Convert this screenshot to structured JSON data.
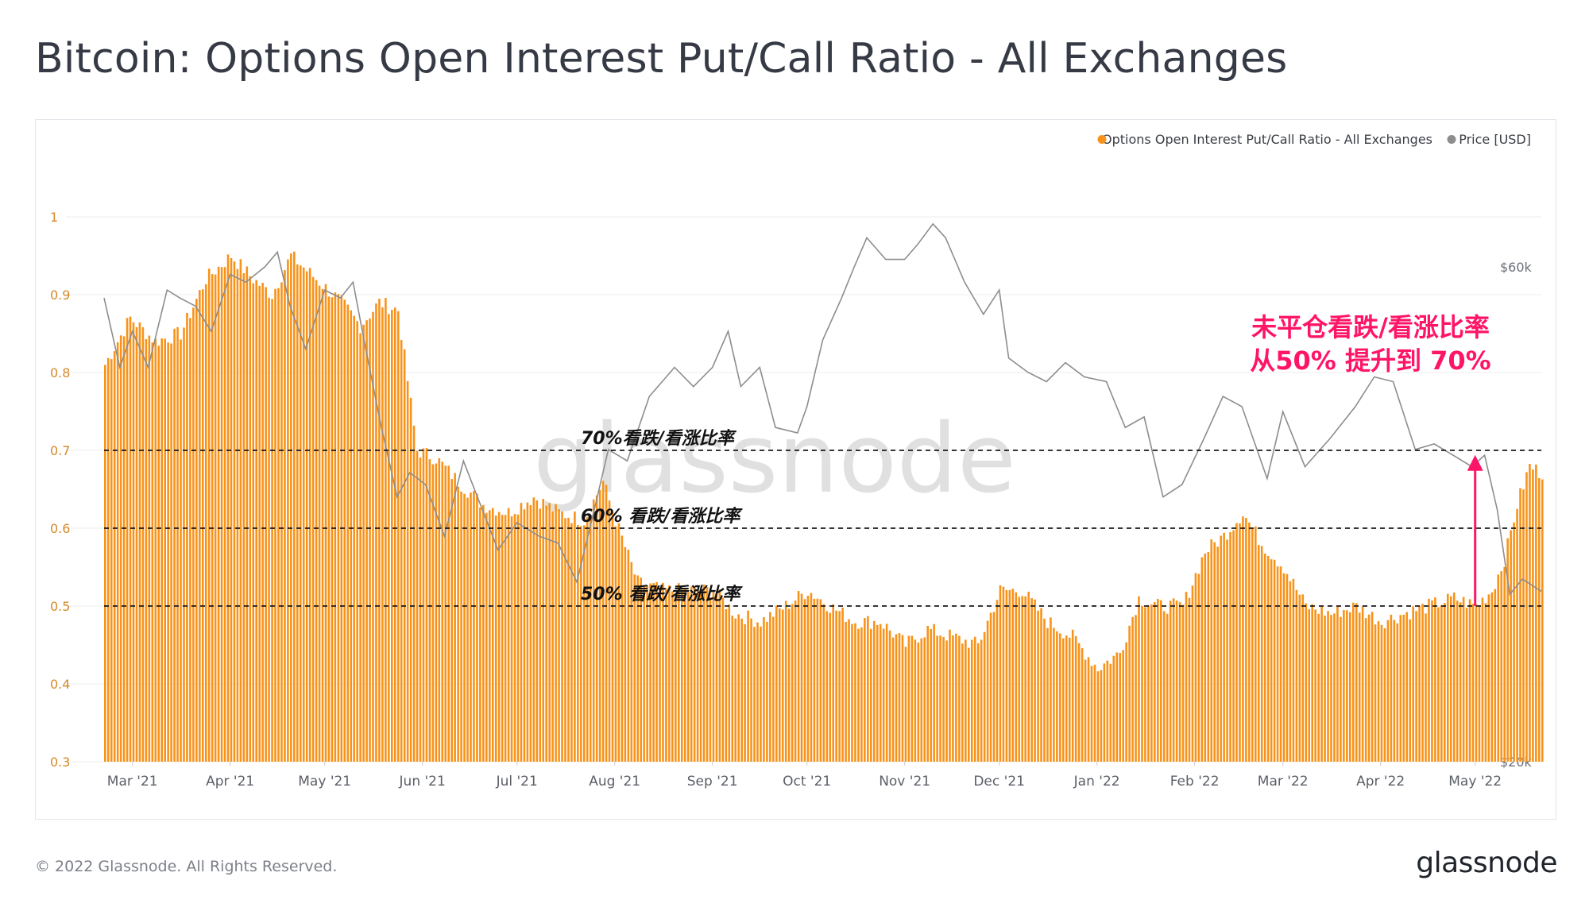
{
  "title": "Bitcoin: Options Open Interest Put/Call Ratio - All Exchanges",
  "footer": {
    "copyright": "© 2022 Glassnode. All Rights Reserved.",
    "logo": "glassnode"
  },
  "watermark": "glassnode",
  "colors": {
    "ratio": "#f7931a",
    "price": "#8d8d8d",
    "annotation": "#ff1567",
    "threshold_line": "#1a1a1a"
  },
  "chart_data": {
    "type": "bar",
    "legend_position": "top-right",
    "grid": true,
    "legend": [
      {
        "label": "Options Open Interest Put/Call Ratio - All Exchanges",
        "color": "#f7931a"
      },
      {
        "label": "Price [USD]",
        "color": "#8d8d8d"
      }
    ],
    "x_ticks": [
      "Mar '21",
      "Apr '21",
      "May '21",
      "Jun '21",
      "Jul '21",
      "Aug '21",
      "Sep '21",
      "Oct '21",
      "Nov '21",
      "Dec '21",
      "Jan '22",
      "Feb '22",
      "Mar '22",
      "Apr '22",
      "May '22"
    ],
    "x_tick_dates": [
      "2021-03-01",
      "2021-04-01",
      "2021-05-01",
      "2021-06-01",
      "2021-07-01",
      "2021-08-01",
      "2021-09-01",
      "2021-10-01",
      "2021-11-01",
      "2021-12-01",
      "2022-01-01",
      "2022-02-01",
      "2022-03-01",
      "2022-04-01",
      "2022-05-01"
    ],
    "x_range": [
      "2021-02-20",
      "2022-05-22"
    ],
    "y_left": {
      "ticks": [
        "1",
        "0.9",
        "0.8",
        "0.7",
        "0.6",
        "0.5",
        "0.4",
        "0.3"
      ],
      "range": [
        0.3,
        1.0
      ]
    },
    "y_right": {
      "ticks": [
        "$60k",
        "$20k"
      ],
      "log": true
    },
    "ratio_series": {
      "name": "Options Open Interest Put/Call Ratio - All Exchanges",
      "dates": [
        "2021-02-20",
        "2021-02-28",
        "2021-03-08",
        "2021-03-16",
        "2021-03-24",
        "2021-04-01",
        "2021-04-08",
        "2021-04-14",
        "2021-04-20",
        "2021-04-28",
        "2021-05-06",
        "2021-05-12",
        "2021-05-18",
        "2021-05-24",
        "2021-05-30",
        "2021-06-05",
        "2021-06-12",
        "2021-06-20",
        "2021-06-28",
        "2021-07-06",
        "2021-07-14",
        "2021-07-22",
        "2021-07-28",
        "2021-08-01",
        "2021-08-08",
        "2021-08-16",
        "2021-08-24",
        "2021-09-01",
        "2021-09-08",
        "2021-09-16",
        "2021-09-24",
        "2021-10-01",
        "2021-10-08",
        "2021-10-16",
        "2021-10-24",
        "2021-11-01",
        "2021-11-08",
        "2021-11-16",
        "2021-11-24",
        "2021-12-01",
        "2021-12-08",
        "2021-12-16",
        "2021-12-24",
        "2022-01-01",
        "2022-01-08",
        "2022-01-14",
        "2022-01-20",
        "2022-01-28",
        "2022-02-04",
        "2022-02-10",
        "2022-02-16",
        "2022-02-22",
        "2022-03-01",
        "2022-03-08",
        "2022-03-16",
        "2022-03-24",
        "2022-04-01",
        "2022-04-08",
        "2022-04-16",
        "2022-04-24",
        "2022-05-01",
        "2022-05-06",
        "2022-05-10",
        "2022-05-14",
        "2022-05-18",
        "2022-05-22"
      ],
      "values": [
        0.81,
        0.87,
        0.84,
        0.85,
        0.92,
        0.95,
        0.92,
        0.9,
        0.95,
        0.92,
        0.89,
        0.86,
        0.89,
        0.88,
        0.7,
        0.69,
        0.66,
        0.63,
        0.62,
        0.64,
        0.62,
        0.61,
        0.66,
        0.61,
        0.53,
        0.52,
        0.52,
        0.52,
        0.49,
        0.48,
        0.5,
        0.52,
        0.5,
        0.48,
        0.48,
        0.45,
        0.47,
        0.46,
        0.45,
        0.52,
        0.52,
        0.48,
        0.46,
        0.42,
        0.44,
        0.51,
        0.5,
        0.5,
        0.57,
        0.59,
        0.62,
        0.58,
        0.55,
        0.5,
        0.49,
        0.5,
        0.48,
        0.49,
        0.5,
        0.51,
        0.5,
        0.52,
        0.56,
        0.63,
        0.68,
        0.67
      ]
    },
    "price_series": {
      "name": "Price [USD]",
      "dates": [
        "2021-02-20",
        "2021-02-25",
        "2021-03-01",
        "2021-03-06",
        "2021-03-12",
        "2021-03-16",
        "2021-03-21",
        "2021-03-26",
        "2021-04-01",
        "2021-04-06",
        "2021-04-12",
        "2021-04-16",
        "2021-04-20",
        "2021-04-25",
        "2021-05-01",
        "2021-05-06",
        "2021-05-10",
        "2021-05-14",
        "2021-05-19",
        "2021-05-24",
        "2021-05-28",
        "2021-06-02",
        "2021-06-08",
        "2021-06-14",
        "2021-06-20",
        "2021-06-25",
        "2021-07-01",
        "2021-07-08",
        "2021-07-14",
        "2021-07-20",
        "2021-07-26",
        "2021-07-30",
        "2021-08-05",
        "2021-08-12",
        "2021-08-20",
        "2021-08-26",
        "2021-09-01",
        "2021-09-06",
        "2021-09-10",
        "2021-09-16",
        "2021-09-21",
        "2021-09-28",
        "2021-10-01",
        "2021-10-06",
        "2021-10-12",
        "2021-10-16",
        "2021-10-20",
        "2021-10-26",
        "2021-11-01",
        "2021-11-05",
        "2021-11-10",
        "2021-11-14",
        "2021-11-20",
        "2021-11-26",
        "2021-12-01",
        "2021-12-04",
        "2021-12-10",
        "2021-12-16",
        "2021-12-22",
        "2021-12-28",
        "2022-01-04",
        "2022-01-10",
        "2022-01-16",
        "2022-01-22",
        "2022-01-28",
        "2022-02-04",
        "2022-02-10",
        "2022-02-16",
        "2022-02-24",
        "2022-03-01",
        "2022-03-08",
        "2022-03-16",
        "2022-03-24",
        "2022-03-30",
        "2022-04-05",
        "2022-04-12",
        "2022-04-18",
        "2022-04-24",
        "2022-04-30",
        "2022-05-04",
        "2022-05-08",
        "2022-05-12",
        "2022-05-16",
        "2022-05-22"
      ],
      "values": [
        56000,
        48000,
        52000,
        48000,
        57000,
        56000,
        55000,
        52000,
        59000,
        58000,
        60000,
        62000,
        55000,
        50000,
        57000,
        56000,
        58000,
        50000,
        42000,
        36000,
        38000,
        37000,
        33000,
        39000,
        35000,
        32000,
        34000,
        33000,
        32500,
        29800,
        35500,
        40000,
        39000,
        45000,
        48000,
        46000,
        48000,
        52000,
        46000,
        48000,
        42000,
        41500,
        44000,
        51000,
        56000,
        60000,
        64000,
        61000,
        61000,
        63000,
        66000,
        64000,
        58000,
        54000,
        57000,
        49000,
        47500,
        46500,
        48500,
        47000,
        46500,
        42000,
        43000,
        36000,
        37000,
        41000,
        45000,
        44000,
        37500,
        43500,
        38500,
        41000,
        44000,
        47000,
        46500,
        40000,
        40500,
        39500,
        38500,
        39500,
        35000,
        29000,
        30000,
        29200
      ],
      "price_min": 20000,
      "price_max": 68000
    },
    "threshold_lines": [
      {
        "value": 0.7,
        "label": "70%看跌/看涨比率"
      },
      {
        "value": 0.6,
        "label": "60% 看跌/看涨比率"
      },
      {
        "value": 0.5,
        "label": "50% 看跌/看涨比率"
      }
    ],
    "annotation": {
      "lines": [
        "未平仓看跌/看涨比率",
        "从50% 提升到 70%"
      ],
      "arrow_date": "2022-05-01",
      "arrow_from": 0.5,
      "arrow_to": 0.69
    }
  }
}
